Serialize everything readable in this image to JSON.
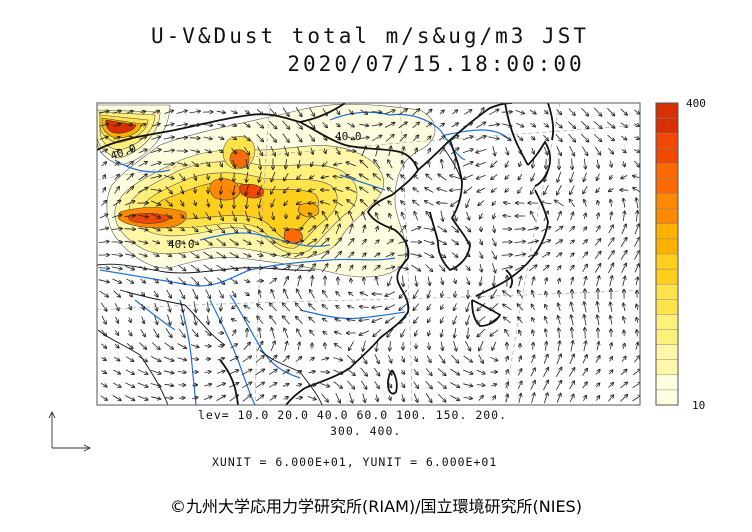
{
  "title": {
    "line1": "U-V&Dust total m/s&ug/m3 JST",
    "line2": "2020/07/15.18:00:00"
  },
  "map": {
    "contour_label": "40.0",
    "levels_line1": "lev= 10.0 20.0 40.0 60.0 100. 150. 200.",
    "levels_line2": "300. 400.",
    "units": "XUNIT = 6.000E+01, YUNIT = 6.000E+01"
  },
  "colorbar": {
    "max_label": "400",
    "min_label": "10",
    "levels": [
      10,
      20,
      40,
      60,
      100,
      150,
      200,
      300,
      400
    ],
    "colors": [
      "#fffde0",
      "#fff7a8",
      "#fff07a",
      "#ffe34a",
      "#ffcf1e",
      "#ffb000",
      "#ff8a00",
      "#ff6a00",
      "#f04800",
      "#d83000"
    ]
  },
  "credit": "©九州大学応用力学研究所(RIAM)/国立環境研究所(NIES)"
}
